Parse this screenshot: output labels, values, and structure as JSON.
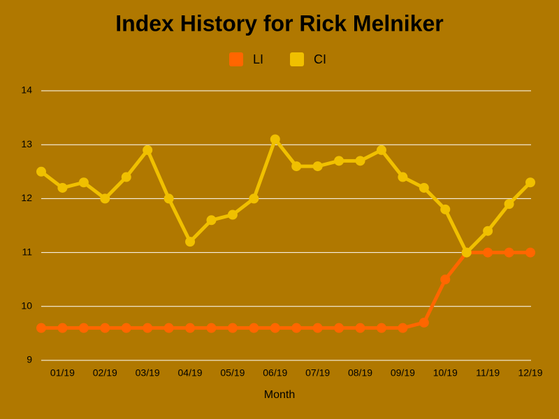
{
  "chart_data": {
    "type": "line",
    "title": "Index History for Rick Melniker",
    "x_label": "Month",
    "categories": [
      null,
      "01/19",
      null,
      "02/19",
      null,
      "03/19",
      null,
      "04/19",
      null,
      "05/19",
      null,
      "06/19",
      null,
      "07/19",
      null,
      "08/19",
      null,
      "09/19",
      null,
      "10/19",
      null,
      "11/19",
      null,
      "12/19"
    ],
    "series": [
      {
        "name": "LI",
        "color": "#ff6600",
        "values": [
          9.6,
          9.6,
          9.6,
          9.6,
          9.6,
          9.6,
          9.6,
          9.6,
          9.6,
          9.6,
          9.6,
          9.6,
          9.6,
          9.6,
          9.6,
          9.6,
          9.6,
          9.6,
          9.7,
          10.5,
          11,
          11,
          11,
          11
        ]
      },
      {
        "name": "CI",
        "color": "#f0c000",
        "values": [
          12.5,
          12.2,
          12.3,
          12.0,
          12.4,
          12.9,
          12.0,
          11.2,
          11.6,
          11.7,
          12.0,
          13.1,
          12.6,
          12.6,
          12.7,
          12.7,
          12.9,
          12.4,
          12.2,
          11.8,
          11.0,
          11.4,
          11.9,
          12.3
        ]
      }
    ],
    "ylim": [
      9,
      14
    ],
    "yticks": [
      9,
      10,
      11,
      12,
      13,
      14
    ],
    "grid": true,
    "legend": "top"
  }
}
